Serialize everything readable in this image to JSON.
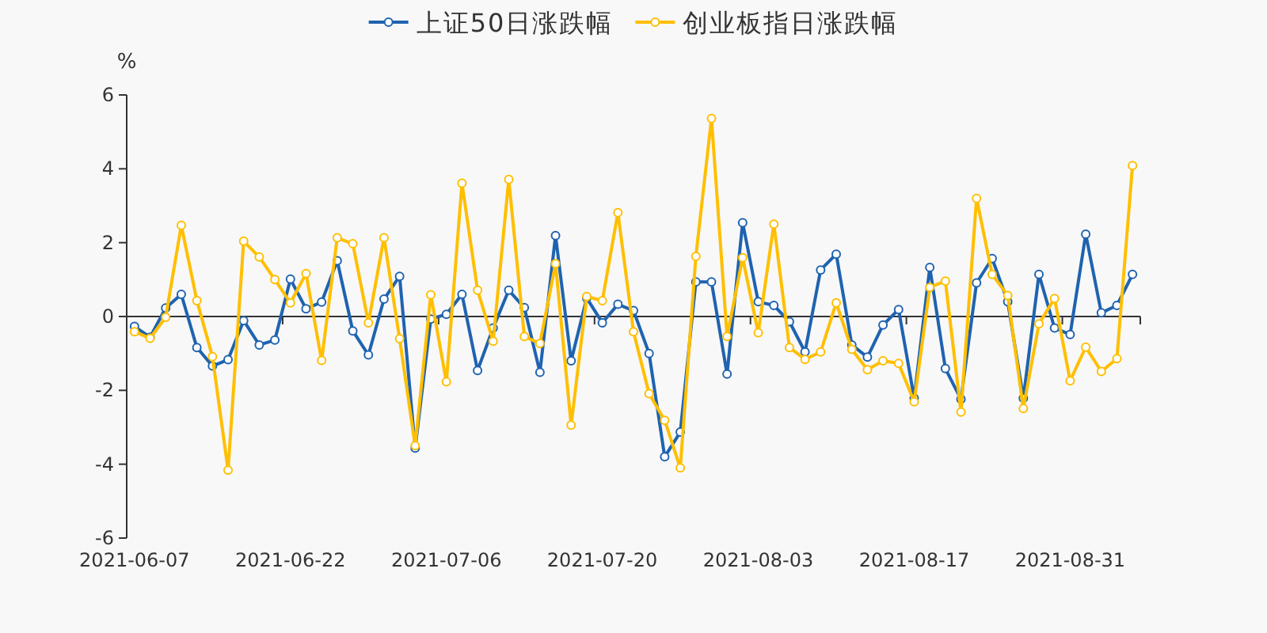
{
  "chart_data": {
    "type": "line",
    "ylabel": "%",
    "categories": [
      "2021-06-07",
      null,
      null,
      null,
      null,
      null,
      null,
      null,
      null,
      null,
      "2021-06-22",
      null,
      null,
      null,
      null,
      null,
      null,
      null,
      null,
      null,
      "2021-07-06",
      null,
      null,
      null,
      null,
      null,
      null,
      null,
      null,
      null,
      "2021-07-20",
      null,
      null,
      null,
      null,
      null,
      null,
      null,
      null,
      null,
      "2021-08-03",
      null,
      null,
      null,
      null,
      null,
      null,
      null,
      null,
      null,
      "2021-08-17",
      null,
      null,
      null,
      null,
      null,
      null,
      null,
      null,
      null,
      "2021-08-31",
      null,
      null,
      null,
      null
    ],
    "series": [
      {
        "name": "上证50日涨跌幅",
        "color": "#1f63b0",
        "values": [
          -0.27,
          -0.56,
          0.23,
          0.6,
          -0.84,
          -1.34,
          -1.17,
          -0.11,
          -0.77,
          -0.64,
          1.01,
          0.21,
          0.39,
          1.51,
          -0.39,
          -1.04,
          0.47,
          1.09,
          -3.56,
          -0.07,
          0.06,
          0.6,
          -1.46,
          -0.31,
          0.71,
          0.24,
          -1.51,
          2.19,
          -1.2,
          0.5,
          -0.17,
          0.33,
          0.16,
          -1.0,
          -3.8,
          -3.13,
          0.94,
          0.94,
          -1.56,
          2.54,
          0.4,
          0.3,
          -0.14,
          -0.96,
          1.26,
          1.69,
          -0.77,
          -1.1,
          -0.23,
          0.19,
          -2.21,
          1.33,
          -1.41,
          -2.24,
          0.91,
          1.57,
          0.4,
          -2.21,
          1.14,
          -0.31,
          -0.49,
          2.23,
          0.1,
          0.3,
          1.14
        ]
      },
      {
        "name": "创业板指日涨跌幅",
        "color": "#ffbf00",
        "values": [
          -0.41,
          -0.59,
          -0.02,
          2.47,
          0.43,
          -1.09,
          -4.16,
          2.04,
          1.61,
          1.0,
          0.37,
          1.16,
          -1.19,
          2.13,
          1.97,
          -0.17,
          2.13,
          -0.6,
          -3.5,
          0.59,
          -1.77,
          3.61,
          0.71,
          -0.67,
          3.71,
          -0.54,
          -0.73,
          1.43,
          -2.94,
          0.54,
          0.43,
          2.81,
          -0.41,
          -2.09,
          -2.81,
          -4.1,
          1.63,
          5.36,
          -0.54,
          1.59,
          -0.44,
          2.5,
          -0.84,
          -1.16,
          -0.96,
          0.37,
          -0.89,
          -1.44,
          -1.2,
          -1.27,
          -2.31,
          0.79,
          0.96,
          -2.59,
          3.2,
          1.14,
          0.57,
          -2.49,
          -0.2,
          0.49,
          -1.74,
          -0.83,
          -1.49,
          -1.14,
          4.09
        ]
      }
    ],
    "ylim": [
      -6,
      6
    ],
    "yticks": [
      -6,
      -4,
      -2,
      0,
      2,
      4,
      6
    ],
    "legend": "top",
    "marker": "circle",
    "line_style": "solid"
  }
}
